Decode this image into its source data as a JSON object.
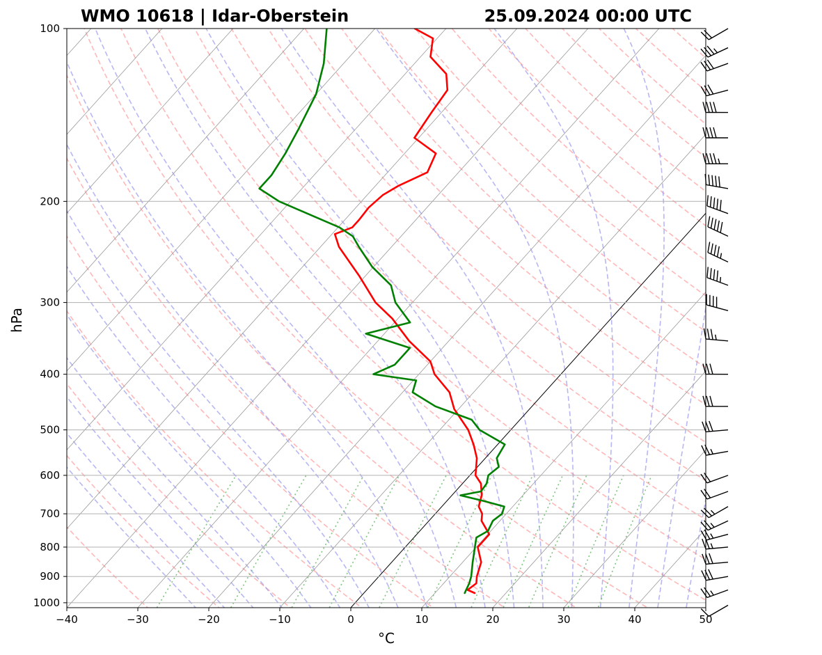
{
  "chart_data": {
    "type": "line",
    "title_left": "WMO 10618 | Idar-Oberstein",
    "title_right": "25.09.2024 00:00 UTC",
    "xlabel": "°C",
    "ylabel": "hPa",
    "xlim": [
      -40,
      50
    ],
    "ylim": [
      1020,
      100
    ],
    "y_scale": "log",
    "skew": true,
    "grid": true,
    "x_ticks": [
      -40,
      -30,
      -20,
      -10,
      0,
      10,
      20,
      30,
      40,
      50
    ],
    "x_tick_labels": [
      "−40",
      "−30",
      "−20",
      "−10",
      "0",
      "10",
      "20",
      "30",
      "40",
      "50"
    ],
    "y_ticks": [
      100,
      200,
      300,
      400,
      500,
      600,
      700,
      800,
      900,
      1000
    ],
    "y_tick_labels": [
      "100",
      "200",
      "300",
      "400",
      "500",
      "600",
      "700",
      "800",
      "900",
      "1000"
    ],
    "colors": {
      "temperature": "#ff0000",
      "dewpoint": "#008000",
      "dry_adiabats": "#ff9999",
      "moist_adiabats": "#9999ee",
      "mixing_ratio": "#66bb66",
      "isotherms": "#999999",
      "zero_isotherm": "#000000"
    },
    "series": [
      {
        "key": "temperature",
        "p": [
          962,
          950,
          925,
          900,
          850,
          800,
          760,
          720,
          700,
          680,
          650,
          620,
          600,
          560,
          530,
          500,
          460,
          430,
          400,
          380,
          350,
          320,
          300,
          270,
          240,
          228,
          222,
          215,
          205,
          200,
          195,
          188,
          178,
          165,
          155,
          140,
          128,
          120,
          112,
          104,
          100
        ],
        "t": [
          15.6,
          14.2,
          14.6,
          13.8,
          12.6,
          10.2,
          10.2,
          7.4,
          6.6,
          5.2,
          4.2,
          2.6,
          0.8,
          -1.2,
          -3.4,
          -6.0,
          -10.6,
          -13.4,
          -17.8,
          -20.0,
          -25.6,
          -30.8,
          -35.2,
          -40.8,
          -47.4,
          -49.6,
          -48.0,
          -48.0,
          -48.2,
          -48.0,
          -47.8,
          -46.8,
          -44.4,
          -45.6,
          -50.6,
          -51.4,
          -52.0,
          -54.2,
          -58.6,
          -60.6,
          -64.4
        ]
      },
      {
        "key": "dewpoint",
        "p": [
          962,
          950,
          925,
          900,
          850,
          800,
          770,
          750,
          720,
          700,
          680,
          665,
          650,
          640,
          620,
          600,
          580,
          560,
          530,
          500,
          480,
          455,
          430,
          410,
          400,
          385,
          360,
          340,
          325,
          300,
          280,
          260,
          240,
          230,
          222,
          200,
          190,
          180,
          165,
          150,
          130,
          115,
          100
        ],
        "t": [
          14.2,
          14.0,
          13.6,
          13.0,
          11.4,
          9.8,
          8.8,
          9.6,
          9.0,
          9.4,
          8.8,
          5.2,
          1.2,
          3.6,
          3.4,
          2.6,
          3.0,
          1.6,
          1.0,
          -4.4,
          -6.8,
          -13.6,
          -18.6,
          -19.6,
          -26.4,
          -24.6,
          -24.6,
          -32.6,
          -27.8,
          -32.4,
          -35.2,
          -40.2,
          -44.6,
          -46.8,
          -49.8,
          -61.6,
          -66.0,
          -66.0,
          -66.8,
          -68.0,
          -70.0,
          -72.8,
          -76.8
        ]
      }
    ],
    "wind_barbs": [
      {
        "p": 1010,
        "dir": 240,
        "kt": 10
      },
      {
        "p": 950,
        "dir": 250,
        "kt": 25
      },
      {
        "p": 900,
        "dir": 260,
        "kt": 30
      },
      {
        "p": 850,
        "dir": 265,
        "kt": 30
      },
      {
        "p": 800,
        "dir": 265,
        "kt": 25
      },
      {
        "p": 760,
        "dir": 255,
        "kt": 25
      },
      {
        "p": 720,
        "dir": 245,
        "kt": 25
      },
      {
        "p": 680,
        "dir": 240,
        "kt": 25
      },
      {
        "p": 640,
        "dir": 250,
        "kt": 20
      },
      {
        "p": 600,
        "dir": 250,
        "kt": 20
      },
      {
        "p": 545,
        "dir": 260,
        "kt": 25
      },
      {
        "p": 500,
        "dir": 265,
        "kt": 30
      },
      {
        "p": 455,
        "dir": 270,
        "kt": 30
      },
      {
        "p": 400,
        "dir": 270,
        "kt": 30
      },
      {
        "p": 350,
        "dir": 275,
        "kt": 35
      },
      {
        "p": 310,
        "dir": 285,
        "kt": 40
      },
      {
        "p": 280,
        "dir": 290,
        "kt": 45
      },
      {
        "p": 255,
        "dir": 295,
        "kt": 45
      },
      {
        "p": 230,
        "dir": 295,
        "kt": 50
      },
      {
        "p": 210,
        "dir": 290,
        "kt": 50
      },
      {
        "p": 190,
        "dir": 280,
        "kt": 50
      },
      {
        "p": 172,
        "dir": 270,
        "kt": 45
      },
      {
        "p": 155,
        "dir": 270,
        "kt": 40
      },
      {
        "p": 140,
        "dir": 270,
        "kt": 40
      },
      {
        "p": 128,
        "dir": 255,
        "kt": 30
      },
      {
        "p": 115,
        "dir": 250,
        "kt": 30
      },
      {
        "p": 108,
        "dir": 245,
        "kt": 35
      },
      {
        "p": 100,
        "dir": 240,
        "kt": 20
      }
    ]
  }
}
